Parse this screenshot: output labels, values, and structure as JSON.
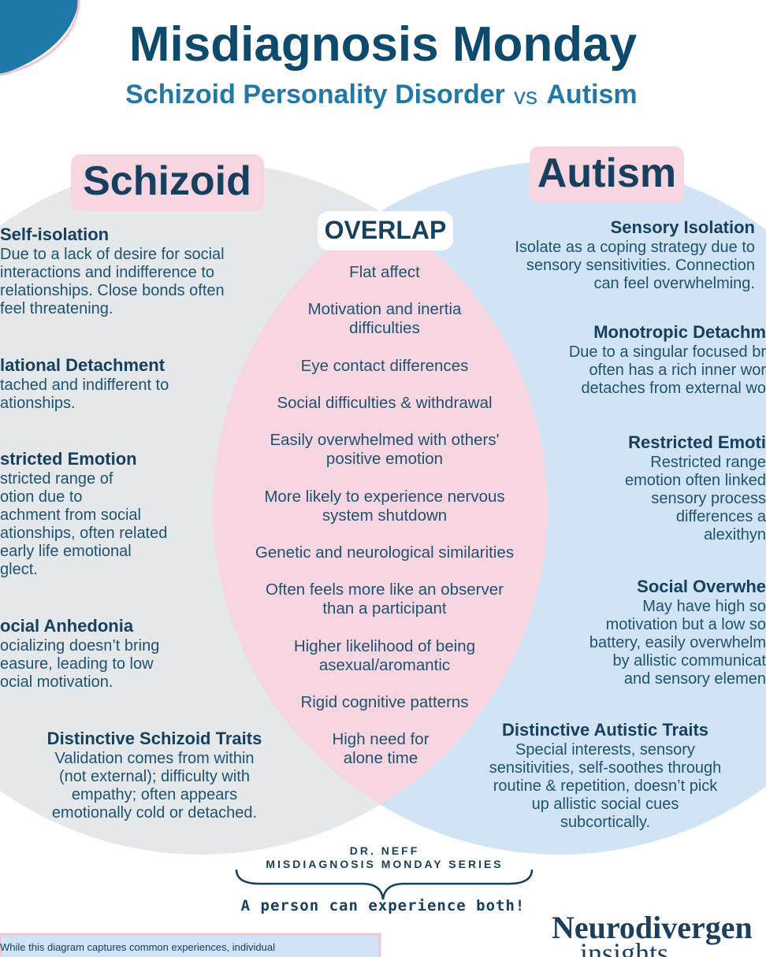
{
  "header": {
    "title": "Misdiagnosis Monday",
    "subtitle": {
      "left": "Schizoid Personality Disorder",
      "vs": "vs",
      "right": "Autism"
    }
  },
  "schizoid": {
    "label": "Schizoid",
    "items": [
      {
        "heading": "Self-isolation",
        "lines": [
          "Due to a lack of desire for social",
          "interactions and indifference to",
          "relationships. Close bonds often",
          "feel threatening."
        ]
      },
      {
        "heading": "lational Detachment",
        "lines": [
          "tached and indifferent to",
          "ationships."
        ]
      },
      {
        "heading": "stricted Emotion",
        "lines": [
          "stricted range of",
          "otion due to",
          "achment from social",
          "ationships, often related",
          "early life emotional",
          "glect."
        ]
      },
      {
        "heading": "ocial Anhedonia",
        "lines": [
          "ocializing doesn’t bring",
          "easure, leading to low",
          "ocial motivation."
        ]
      },
      {
        "heading": "Distinctive Schizoid Traits",
        "lines": [
          "Validation comes from within",
          "(not external); difficulty with",
          "empathy; often appears",
          "emotionally cold or detached."
        ]
      }
    ]
  },
  "overlap": {
    "label": "OVERLAP",
    "items": [
      [
        "Flat affect"
      ],
      [
        "Motivation and inertia",
        "difficulties"
      ],
      [
        "Eye contact differences"
      ],
      [
        "Social difficulties & withdrawal"
      ],
      [
        "Easily overwhelmed with others'",
        "positive emotion"
      ],
      [
        "More likely to experience nervous",
        "system shutdown"
      ],
      [
        "Genetic and neurological similarities"
      ],
      [
        "Often feels more like an observer",
        "than a participant"
      ],
      [
        "Higher likelihood of being",
        "asexual/aromantic"
      ],
      [
        "Rigid cognitive patterns"
      ],
      [
        "High need for",
        "alone time"
      ]
    ]
  },
  "autism": {
    "label": "Autism",
    "items": [
      {
        "heading": "Sensory Isolation",
        "lines": [
          "Isolate as a coping strategy due to",
          "sensory sensitivities. Connection",
          "can feel overwhelming."
        ]
      },
      {
        "heading": "Monotropic Detachm",
        "lines": [
          "Due to a singular focused br",
          "often has a rich inner wor",
          "detaches from external wo"
        ]
      },
      {
        "heading": "Restricted Emoti",
        "lines": [
          "Restricted range",
          "emotion often linked",
          "sensory process",
          "differences a",
          "alexithyn"
        ]
      },
      {
        "heading": "Social Overwhe",
        "lines": [
          "May have high so",
          "motivation but a low so",
          "battery, easily overwhelm",
          "by allistic communicat",
          "and sensory elemen"
        ]
      },
      {
        "heading": "Distinctive Autistic Traits",
        "lines": [
          "Special interests, sensory",
          "sensitivities, self-soothes through",
          "routine & repetition, doesn’t pick",
          "up allistic social cues",
          "subcortically."
        ]
      }
    ]
  },
  "footer": {
    "credit": [
      "DR. NEFF",
      "MISDIAGNOSIS MONDAY SERIES"
    ],
    "tagline": "A person can experience both!",
    "brand": [
      "Neurodivergen",
      "insights"
    ],
    "disclaimer": "While this diagram captures common experiences, individual"
  }
}
